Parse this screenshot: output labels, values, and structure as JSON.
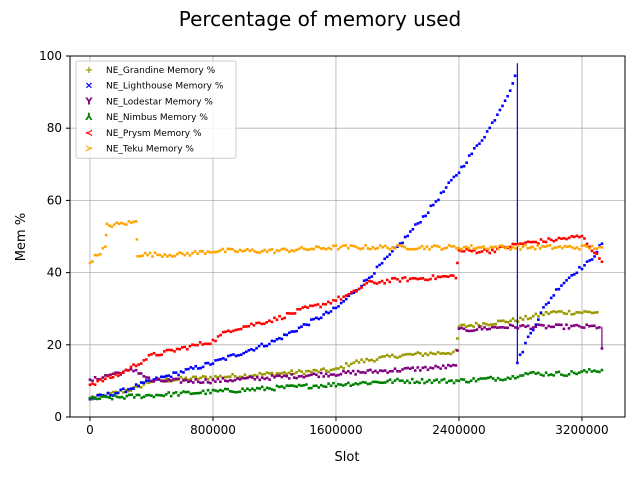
{
  "chart_data": {
    "type": "scatter",
    "title": "Percentage of memory used",
    "xlabel": "Slot",
    "ylabel": "Mem %",
    "xlim": [
      -130000,
      3480000
    ],
    "ylim": [
      0,
      100
    ],
    "xticks": [
      0,
      800000,
      1600000,
      2400000,
      3200000
    ],
    "xtick_labels": [
      "0",
      "800000",
      "1600000",
      "2400000",
      "3200000"
    ],
    "yticks": [
      0,
      20,
      40,
      60,
      80,
      100
    ],
    "ytick_labels": [
      "0",
      "20",
      "40",
      "60",
      "80",
      "100"
    ],
    "grid": true,
    "legend_position": "top-left",
    "series": [
      {
        "name": "NE_Grandine Memory %",
        "color": "#9a9a00",
        "marker": "+",
        "points": [
          [
            0,
            5
          ],
          [
            300000,
            8
          ],
          [
            400000,
            10
          ],
          [
            800000,
            11
          ],
          [
            1200000,
            12
          ],
          [
            1600000,
            13
          ],
          [
            1700000,
            15
          ],
          [
            2000000,
            17
          ],
          [
            2380000,
            18
          ],
          [
            2400000,
            25
          ],
          [
            2800000,
            27
          ],
          [
            3000000,
            29
          ],
          [
            3300000,
            29
          ]
        ]
      },
      {
        "name": "NE_Lighthouse Memory %",
        "color": "#0000ff",
        "marker": "x",
        "points": [
          [
            0,
            5
          ],
          [
            200000,
            7
          ],
          [
            400000,
            10
          ],
          [
            800000,
            15
          ],
          [
            1000000,
            18
          ],
          [
            1200000,
            21
          ],
          [
            1600000,
            30
          ],
          [
            1800000,
            38
          ],
          [
            2000000,
            47
          ],
          [
            2200000,
            57
          ],
          [
            2400000,
            68
          ],
          [
            2600000,
            80
          ],
          [
            2750000,
            92
          ],
          [
            2780000,
            98
          ],
          [
            2780000,
            15
          ],
          [
            2850000,
            22
          ],
          [
            2950000,
            30
          ],
          [
            3050000,
            36
          ],
          [
            3150000,
            40
          ],
          [
            3250000,
            43
          ],
          [
            3330000,
            48
          ]
        ]
      },
      {
        "name": "NE_Lodestar Memory %",
        "color": "#800080",
        "marker": "1",
        "points": [
          [
            0,
            10
          ],
          [
            150000,
            12
          ],
          [
            300000,
            13
          ],
          [
            400000,
            10
          ],
          [
            800000,
            10
          ],
          [
            1200000,
            11
          ],
          [
            1600000,
            12
          ],
          [
            2000000,
            13
          ],
          [
            2380000,
            14
          ],
          [
            2400000,
            24
          ],
          [
            2700000,
            25
          ],
          [
            3000000,
            25
          ],
          [
            3330000,
            25
          ],
          [
            3330000,
            19
          ]
        ]
      },
      {
        "name": "NE_Nimbus Memory %",
        "color": "#008000",
        "marker": "2",
        "points": [
          [
            0,
            5
          ],
          [
            400000,
            6
          ],
          [
            800000,
            7
          ],
          [
            1200000,
            8
          ],
          [
            1600000,
            9
          ],
          [
            2000000,
            10
          ],
          [
            2400000,
            10
          ],
          [
            2750000,
            11
          ],
          [
            2800000,
            12
          ],
          [
            3100000,
            12
          ],
          [
            3330000,
            13
          ]
        ]
      },
      {
        "name": "NE_Prysm Memory %",
        "color": "#ff0000",
        "marker": "3",
        "points": [
          [
            0,
            9
          ],
          [
            200000,
            12
          ],
          [
            400000,
            17
          ],
          [
            600000,
            19
          ],
          [
            800000,
            21
          ],
          [
            900000,
            24
          ],
          [
            1200000,
            27
          ],
          [
            1400000,
            30
          ],
          [
            1500000,
            31
          ],
          [
            1700000,
            34
          ],
          [
            1800000,
            37
          ],
          [
            2000000,
            38
          ],
          [
            2380000,
            39
          ],
          [
            2400000,
            46
          ],
          [
            2600000,
            46
          ],
          [
            2800000,
            48
          ],
          [
            3000000,
            49
          ],
          [
            3200000,
            50
          ],
          [
            3330000,
            43
          ]
        ]
      },
      {
        "name": "NE_Teku Memory %",
        "color": "#ffa500",
        "marker": "4",
        "points": [
          [
            0,
            43
          ],
          [
            100000,
            47
          ],
          [
            110000,
            53
          ],
          [
            300000,
            54
          ],
          [
            310000,
            45
          ],
          [
            600000,
            45
          ],
          [
            800000,
            46
          ],
          [
            1200000,
            46
          ],
          [
            1600000,
            47
          ],
          [
            2000000,
            47
          ],
          [
            2400000,
            47
          ],
          [
            2800000,
            47
          ],
          [
            3200000,
            47
          ],
          [
            3330000,
            47
          ]
        ]
      }
    ]
  }
}
